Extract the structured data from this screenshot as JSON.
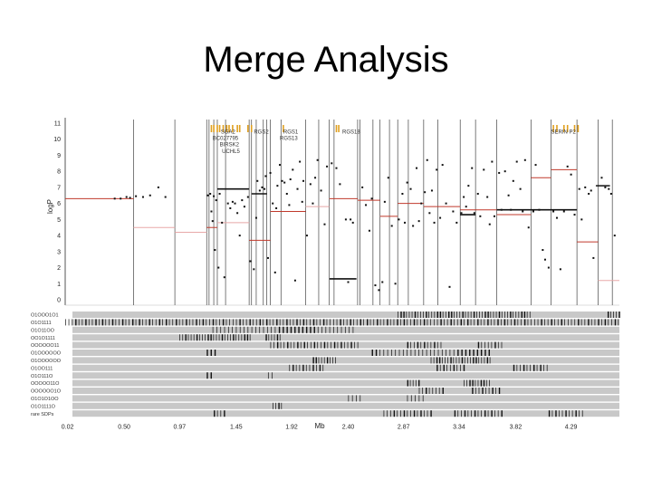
{
  "slide": {
    "title": "Merge Analysis"
  },
  "chart_data": {
    "type": "scatter",
    "title": "",
    "xlabel": "Mb",
    "ylabel": "logP",
    "xlim": [
      0,
      4.7
    ],
    "ylim": [
      0,
      11
    ],
    "x_ticks": [
      "0.02",
      "0.50",
      "0.97",
      "1.45",
      "1.92",
      "2.40",
      "2.87",
      "3.34",
      "3.82",
      "4.29"
    ],
    "x_tick_values": [
      0.02,
      0.5,
      0.97,
      1.45,
      1.92,
      2.4,
      2.87,
      3.34,
      3.82,
      4.29
    ],
    "y_ticks": [
      "0",
      "1",
      "2",
      "3",
      "4",
      "5",
      "6",
      "7",
      "8",
      "9",
      "10",
      "11"
    ],
    "grid": "vertical lines at segment boundaries",
    "gene_labels": [
      {
        "text": "SGA2",
        "x": 1.32,
        "y": 10.35
      },
      {
        "text": "BC027795",
        "x": 1.25,
        "y": 9.95
      },
      {
        "text": "RGS2",
        "x": 1.6,
        "y": 10.35
      },
      {
        "text": "RGS1",
        "x": 1.85,
        "y": 10.35
      },
      {
        "text": "RGS13",
        "x": 1.82,
        "y": 9.95
      },
      {
        "text": "RGS18",
        "x": 2.35,
        "y": 10.35
      },
      {
        "text": "SERIN P2",
        "x": 4.12,
        "y": 10.35
      },
      {
        "text": "BIRSK2",
        "x": 1.31,
        "y": 9.55
      },
      {
        "text": "UCHL5",
        "x": 1.33,
        "y": 9.15
      }
    ],
    "gene_marks_x": [
      1.24,
      1.26,
      1.29,
      1.31,
      1.34,
      1.37,
      1.39,
      1.42,
      1.46,
      1.48,
      1.55,
      1.58,
      1.85,
      2.3,
      2.32,
      4.14,
      4.17,
      4.23,
      4.26,
      4.32,
      4.35
    ],
    "boundaries_x": [
      0.58,
      0.93,
      1.2,
      1.22,
      1.26,
      1.29,
      1.36,
      1.56,
      1.58,
      1.62,
      1.68,
      1.71,
      1.74,
      1.83,
      2.04,
      2.15,
      2.24,
      2.28,
      2.48,
      2.5,
      2.61,
      2.67,
      2.75,
      2.82,
      2.91,
      3.04,
      3.16,
      3.35,
      3.48,
      3.66,
      3.95,
      4.12,
      4.34,
      4.52,
      4.64
    ],
    "red_segments": [
      {
        "x": [
          0.0,
          0.58
        ],
        "y": 6.3,
        "faded": false
      },
      {
        "x": [
          0.58,
          0.93
        ],
        "y": 4.5,
        "faded": true
      },
      {
        "x": [
          0.93,
          1.2
        ],
        "y": 4.2,
        "faded": true
      },
      {
        "x": [
          1.2,
          1.29
        ],
        "y": 4.5,
        "faded": false
      },
      {
        "x": [
          1.29,
          1.56
        ],
        "y": 4.8,
        "faded": true
      },
      {
        "x": [
          1.56,
          1.74
        ],
        "y": 3.7,
        "faded": false
      },
      {
        "x": [
          1.74,
          2.04
        ],
        "y": 5.5,
        "faded": false
      },
      {
        "x": [
          2.04,
          2.24
        ],
        "y": 5.8,
        "faded": true
      },
      {
        "x": [
          2.24,
          2.48
        ],
        "y": 6.3,
        "faded": false
      },
      {
        "x": [
          2.48,
          2.67
        ],
        "y": 6.2,
        "faded": false
      },
      {
        "x": [
          2.67,
          2.82
        ],
        "y": 5.2,
        "faded": false
      },
      {
        "x": [
          2.82,
          3.04
        ],
        "y": 6.0,
        "faded": false
      },
      {
        "x": [
          3.04,
          3.35
        ],
        "y": 5.8,
        "faded": false
      },
      {
        "x": [
          3.35,
          3.66
        ],
        "y": 5.6,
        "faded": false
      },
      {
        "x": [
          3.66,
          3.95
        ],
        "y": 5.3,
        "faded": false
      },
      {
        "x": [
          3.95,
          4.12
        ],
        "y": 7.6,
        "faded": false
      },
      {
        "x": [
          4.12,
          4.34
        ],
        "y": 8.1,
        "faded": false
      },
      {
        "x": [
          4.34,
          4.52
        ],
        "y": 3.6,
        "faded": false
      },
      {
        "x": [
          4.52,
          4.7
        ],
        "y": 1.2,
        "faded": true
      }
    ],
    "black_segments": [
      {
        "x": [
          1.29,
          1.56
        ],
        "y": 6.9
      },
      {
        "x": [
          1.58,
          1.71
        ],
        "y": 6.6
      },
      {
        "x": [
          2.24,
          2.47
        ],
        "y": 1.3
      },
      {
        "x": [
          3.35,
          3.48
        ],
        "y": 5.3
      },
      {
        "x": [
          3.66,
          4.34
        ],
        "y": 5.6
      },
      {
        "x": [
          4.5,
          4.62
        ],
        "y": 7.1
      }
    ],
    "points": [
      [
        0.42,
        6.3
      ],
      [
        0.47,
        6.3
      ],
      [
        0.52,
        6.4
      ],
      [
        0.55,
        6.35
      ],
      [
        0.6,
        6.45
      ],
      [
        0.66,
        6.4
      ],
      [
        0.72,
        6.5
      ],
      [
        0.79,
        7.0
      ],
      [
        0.85,
        6.4
      ],
      [
        1.21,
        6.5
      ],
      [
        1.23,
        6.6
      ],
      [
        1.24,
        5.5
      ],
      [
        1.25,
        4.9
      ],
      [
        1.26,
        6.45
      ],
      [
        1.27,
        3.1
      ],
      [
        1.28,
        6.2
      ],
      [
        1.3,
        2.0
      ],
      [
        1.31,
        6.6
      ],
      [
        1.33,
        4.8
      ],
      [
        1.35,
        1.4
      ],
      [
        1.38,
        6.0
      ],
      [
        1.4,
        5.7
      ],
      [
        1.42,
        6.1
      ],
      [
        1.44,
        6.0
      ],
      [
        1.46,
        5.4
      ],
      [
        1.48,
        4.0
      ],
      [
        1.5,
        6.2
      ],
      [
        1.52,
        5.8
      ],
      [
        1.55,
        6.4
      ],
      [
        1.57,
        2.4
      ],
      [
        1.6,
        1.9
      ],
      [
        1.62,
        5.1
      ],
      [
        1.63,
        7.4
      ],
      [
        1.65,
        6.8
      ],
      [
        1.67,
        7.0
      ],
      [
        1.69,
        6.9
      ],
      [
        1.7,
        7.7
      ],
      [
        1.72,
        2.6
      ],
      [
        1.74,
        7.9
      ],
      [
        1.76,
        6.0
      ],
      [
        1.78,
        1.7
      ],
      [
        1.79,
        5.7
      ],
      [
        1.8,
        7.1
      ],
      [
        1.82,
        8.4
      ],
      [
        1.84,
        7.4
      ],
      [
        1.86,
        7.3
      ],
      [
        1.88,
        6.6
      ],
      [
        1.9,
        5.9
      ],
      [
        1.91,
        7.5
      ],
      [
        1.93,
        8.1
      ],
      [
        1.95,
        1.2
      ],
      [
        1.97,
        6.9
      ],
      [
        1.99,
        8.6
      ],
      [
        2.01,
        6.1
      ],
      [
        2.02,
        7.4
      ],
      [
        2.05,
        4.0
      ],
      [
        2.08,
        7.2
      ],
      [
        2.1,
        6.0
      ],
      [
        2.12,
        7.6
      ],
      [
        2.14,
        8.7
      ],
      [
        2.17,
        6.8
      ],
      [
        2.2,
        4.7
      ],
      [
        2.22,
        8.3
      ],
      [
        2.26,
        8.5
      ],
      [
        2.3,
        8.2
      ],
      [
        2.33,
        7.2
      ],
      [
        2.38,
        5.0
      ],
      [
        2.4,
        1.1
      ],
      [
        2.42,
        5.0
      ],
      [
        2.44,
        4.8
      ],
      [
        2.52,
        7.0
      ],
      [
        2.55,
        5.9
      ],
      [
        2.58,
        4.3
      ],
      [
        2.6,
        6.3
      ],
      [
        2.63,
        0.9
      ],
      [
        2.66,
        0.6
      ],
      [
        2.69,
        1.1
      ],
      [
        2.71,
        6.1
      ],
      [
        2.74,
        7.6
      ],
      [
        2.77,
        4.6
      ],
      [
        2.8,
        1.0
      ],
      [
        2.83,
        5.0
      ],
      [
        2.86,
        6.6
      ],
      [
        2.88,
        4.8
      ],
      [
        2.9,
        7.3
      ],
      [
        2.93,
        6.9
      ],
      [
        2.95,
        4.6
      ],
      [
        2.98,
        8.2
      ],
      [
        3.0,
        4.9
      ],
      [
        3.02,
        6.0
      ],
      [
        3.05,
        6.7
      ],
      [
        3.07,
        8.7
      ],
      [
        3.09,
        5.4
      ],
      [
        3.11,
        6.8
      ],
      [
        3.13,
        4.8
      ],
      [
        3.15,
        8.1
      ],
      [
        3.18,
        5.1
      ],
      [
        3.2,
        8.4
      ],
      [
        3.23,
        6.0
      ],
      [
        3.26,
        0.8
      ],
      [
        3.29,
        5.5
      ],
      [
        3.32,
        4.8
      ],
      [
        3.36,
        5.4
      ],
      [
        3.38,
        6.4
      ],
      [
        3.4,
        5.8
      ],
      [
        3.42,
        7.1
      ],
      [
        3.45,
        8.2
      ],
      [
        3.47,
        5.4
      ],
      [
        3.5,
        6.6
      ],
      [
        3.52,
        5.2
      ],
      [
        3.55,
        8.1
      ],
      [
        3.58,
        6.4
      ],
      [
        3.6,
        4.7
      ],
      [
        3.62,
        8.6
      ],
      [
        3.64,
        5.2
      ],
      [
        3.68,
        7.9
      ],
      [
        3.7,
        5.6
      ],
      [
        3.73,
        8.0
      ],
      [
        3.76,
        6.5
      ],
      [
        3.78,
        5.6
      ],
      [
        3.8,
        7.4
      ],
      [
        3.83,
        8.6
      ],
      [
        3.86,
        6.9
      ],
      [
        3.88,
        5.5
      ],
      [
        3.9,
        8.7
      ],
      [
        3.93,
        4.5
      ],
      [
        3.97,
        5.5
      ],
      [
        3.99,
        8.4
      ],
      [
        4.02,
        5.6
      ],
      [
        4.05,
        3.1
      ],
      [
        4.07,
        2.5
      ],
      [
        4.1,
        2.0
      ],
      [
        4.14,
        5.5
      ],
      [
        4.17,
        5.1
      ],
      [
        4.2,
        1.9
      ],
      [
        4.23,
        5.5
      ],
      [
        4.26,
        8.3
      ],
      [
        4.29,
        7.8
      ],
      [
        4.32,
        5.3
      ],
      [
        4.36,
        6.9
      ],
      [
        4.38,
        5.0
      ],
      [
        4.41,
        7.0
      ],
      [
        4.44,
        6.6
      ],
      [
        4.46,
        6.8
      ],
      [
        4.48,
        2.6
      ],
      [
        4.55,
        7.6
      ],
      [
        4.58,
        7.0
      ],
      [
        4.61,
        6.9
      ],
      [
        4.63,
        6.6
      ],
      [
        4.66,
        4.0
      ]
    ],
    "haplotype_rows": [
      {
        "label": "O1OOO1O1",
        "ranges": [
          [
            2.82,
            3.95
          ],
          [
            4.6,
            4.7
          ]
        ]
      },
      {
        "label": "O1O1111",
        "ranges": [
          [
            0.0,
            4.7
          ]
        ]
      },
      {
        "label": "O1O11OO",
        "ranges": [
          [
            1.25,
            2.47
          ]
        ]
      },
      {
        "label": "OO1O1111",
        "ranges": [
          [
            0.97,
            1.58
          ],
          [
            1.7,
            1.82
          ]
        ]
      },
      {
        "label": "OOOOOO11",
        "ranges": [
          [
            1.74,
            2.5
          ],
          [
            2.9,
            3.2
          ],
          [
            3.5,
            3.7
          ]
        ]
      },
      {
        "label": "O1OOOOOO",
        "ranges": [
          [
            1.2,
            1.28
          ],
          [
            2.6,
            3.6
          ]
        ]
      },
      {
        "label": "O1OOOOOO",
        "ranges": [
          [
            2.1,
            2.3
          ],
          [
            3.1,
            3.6
          ]
        ]
      },
      {
        "label": "O1OO111",
        "ranges": [
          [
            1.9,
            2.2
          ],
          [
            3.15,
            3.4
          ],
          [
            3.8,
            4.1
          ]
        ]
      },
      {
        "label": "O1O111O",
        "ranges": [
          [
            1.2,
            1.25
          ],
          [
            1.72,
            1.78
          ]
        ]
      },
      {
        "label": "OOOOO11O",
        "ranges": [
          [
            2.9,
            3.0
          ],
          [
            3.38,
            3.6
          ]
        ]
      },
      {
        "label": "OOOOOO1O",
        "ranges": [
          [
            3.0,
            3.2
          ],
          [
            3.45,
            3.7
          ]
        ]
      },
      {
        "label": "O1O1O1OO",
        "ranges": [
          [
            2.4,
            2.5
          ],
          [
            2.9,
            3.05
          ]
        ]
      },
      {
        "label": "O1O1111O",
        "ranges": [
          [
            1.76,
            1.84
          ]
        ]
      },
      {
        "label": "rare SDPs",
        "ranges": [
          [
            1.26,
            1.35
          ],
          [
            2.7,
            3.1
          ],
          [
            3.3,
            3.7
          ],
          [
            4.1,
            4.4
          ]
        ]
      }
    ]
  }
}
